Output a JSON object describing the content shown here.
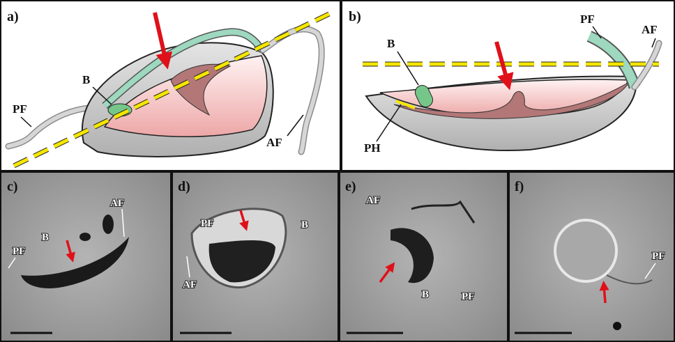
{
  "panels": [
    {
      "label": "a)",
      "annotations": [
        "B",
        "PF",
        "AF"
      ]
    },
    {
      "label": "b)",
      "annotations": [
        "B",
        "PF",
        "AF",
        "PH"
      ]
    },
    {
      "label": "c)",
      "annotations": [
        "AF",
        "B",
        "PF"
      ]
    },
    {
      "label": "d)",
      "annotations": [
        "PF",
        "B",
        "AF"
      ]
    },
    {
      "label": "e)",
      "annotations": [
        "AF",
        "B",
        "PF"
      ]
    },
    {
      "label": "f)",
      "annotations": [
        "PF"
      ]
    }
  ]
}
